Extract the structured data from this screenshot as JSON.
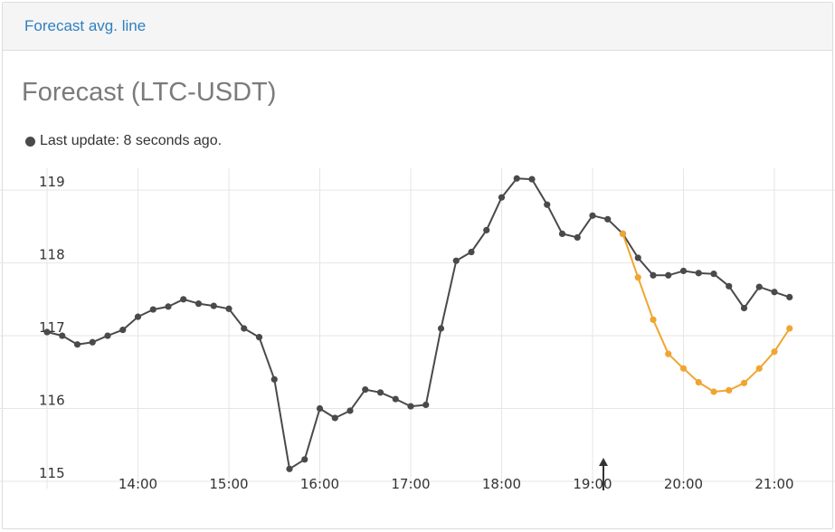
{
  "panel": {
    "title": "Forecast avg. line"
  },
  "status": {
    "text": "Last update: 8 seconds ago."
  },
  "colors": {
    "actual": "#4a4a4a",
    "forecast": "#f0a530"
  },
  "chart_data": {
    "type": "line",
    "title": "Forecast (LTC-USDT)",
    "xlabel": "",
    "ylabel": "",
    "x_ticks": [
      "14:00",
      "15:00",
      "16:00",
      "17:00",
      "18:00",
      "19:00",
      "20:00",
      "21:00"
    ],
    "y_ticks": [
      115,
      116,
      117,
      118,
      119
    ],
    "xlim": [
      "13:00",
      "21:40"
    ],
    "ylim": [
      114.9,
      119.3
    ],
    "grid": true,
    "series": [
      {
        "role": "actual",
        "x": [
          "13:00",
          "13:10",
          "13:20",
          "13:30",
          "13:40",
          "13:50",
          "14:00",
          "14:10",
          "14:20",
          "14:30",
          "14:40",
          "14:50",
          "15:00",
          "15:10",
          "15:20",
          "15:30",
          "15:40",
          "15:50",
          "16:00",
          "16:10",
          "16:20",
          "16:30",
          "16:40",
          "16:50",
          "17:00",
          "17:10",
          "17:20",
          "17:30",
          "17:40",
          "17:50",
          "18:00",
          "18:10",
          "18:20",
          "18:30",
          "18:40",
          "18:50",
          "19:00",
          "19:10",
          "19:20",
          "19:30",
          "19:40",
          "19:50",
          "20:00",
          "20:10",
          "20:20",
          "20:30",
          "20:40",
          "20:50",
          "21:00",
          "21:10"
        ],
        "y": [
          117.05,
          117.0,
          116.88,
          116.91,
          117.0,
          117.08,
          117.26,
          117.36,
          117.4,
          117.5,
          117.44,
          117.41,
          117.37,
          117.1,
          116.98,
          116.4,
          115.17,
          115.3,
          116.0,
          115.87,
          115.97,
          116.26,
          116.22,
          116.13,
          116.03,
          116.05,
          117.1,
          118.03,
          118.15,
          118.45,
          118.9,
          119.16,
          119.15,
          118.8,
          118.4,
          118.35,
          118.65,
          118.6,
          118.4,
          118.07,
          117.83,
          117.83,
          117.89,
          117.86,
          117.85,
          117.68,
          117.38,
          117.67,
          117.6,
          117.53
        ]
      },
      {
        "role": "forecast",
        "x": [
          "19:20",
          "19:30",
          "19:40",
          "19:50",
          "20:00",
          "20:10",
          "20:20",
          "20:30",
          "20:40",
          "20:50",
          "21:00",
          "21:10"
        ],
        "y": [
          118.4,
          117.8,
          117.22,
          116.75,
          116.55,
          116.36,
          116.23,
          116.25,
          116.35,
          116.55,
          116.78,
          117.1
        ]
      }
    ],
    "annotations": [
      {
        "type": "arrow",
        "x": "19:00",
        "direction": "up"
      }
    ]
  }
}
